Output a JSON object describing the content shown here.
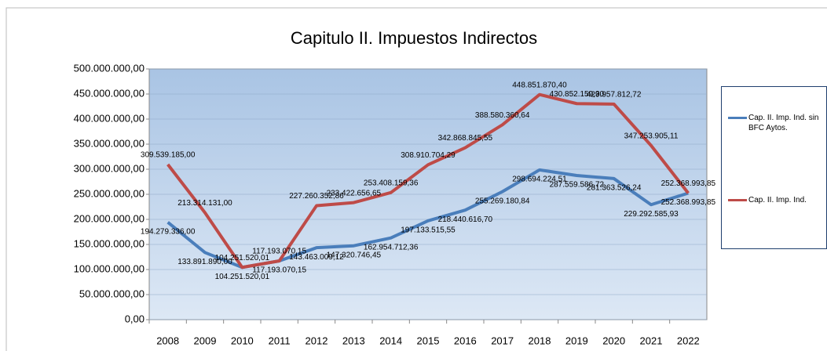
{
  "chart_data": {
    "type": "line",
    "title": "Capitulo II. Impuestos Indirectos",
    "categories": [
      "2008",
      "2009",
      "2010",
      "2011",
      "2012",
      "2013",
      "2014",
      "2015",
      "2016",
      "2017",
      "2018",
      "2019",
      "2020",
      "2021",
      "2022"
    ],
    "series": [
      {
        "name": "Cap. II. Imp. Ind. sin BFC Aytos.",
        "color": "#4a7ebb",
        "values": [
          194279336.0,
          133891890.0,
          104251520.01,
          117193070.15,
          143463009.12,
          147320746.45,
          162954712.36,
          197133515.55,
          218440616.7,
          255269180.84,
          298694224.51,
          287559586.72,
          281363526.24,
          229292585.93,
          252368993.85
        ],
        "value_labels": [
          "194.279.336,00",
          "133.891.890,00",
          "104.251.520,01",
          "117.193.070,15",
          "143.463.009,12",
          "147.320.746,45",
          "162.954.712,36",
          "197.133.515,55",
          "218.440.616,70",
          "255.269.180,84",
          "298.694.224,51",
          "287.559.586,72",
          "281.363.526,24",
          "229.292.585,93",
          "252.368.993,85"
        ]
      },
      {
        "name": "Cap. II. Imp. Ind.",
        "color": "#be4b48",
        "values": [
          309539185.0,
          213314131.0,
          104251520.01,
          117193070.15,
          227260352.86,
          233422656.65,
          253408159.36,
          308910704.29,
          342868845.55,
          388580360.64,
          448851870.4,
          430852159.3,
          429957812.72,
          347253905.11,
          252368993.85
        ],
        "value_labels": [
          "309.539.185,00",
          "213.314.131,00",
          "104.251.520,01",
          "117.193.070,15",
          "227.260.352,86",
          "233.422.656,65",
          "253.408.159,36",
          "308.910.704,29",
          "342.868.845,55",
          "388.580.360,64",
          "448.851.870,40",
          "430.852.159,30",
          "429.957.812,72",
          "347.253.905,11",
          "252.368.993,85"
        ]
      }
    ],
    "ylim": [
      0,
      500000000
    ],
    "yticks": [
      {
        "value": 0,
        "label": "0,00"
      },
      {
        "value": 50000000,
        "label": "50.000.000,00"
      },
      {
        "value": 100000000,
        "label": "100.000.000,00"
      },
      {
        "value": 150000000,
        "label": "150.000.000,00"
      },
      {
        "value": 200000000,
        "label": "200.000.000,00"
      },
      {
        "value": 250000000,
        "label": "250.000.000,00"
      },
      {
        "value": 300000000,
        "label": "300.000.000,00"
      },
      {
        "value": 350000000,
        "label": "350.000.000,00"
      },
      {
        "value": 400000000,
        "label": "400.000.000,00"
      },
      {
        "value": 450000000,
        "label": "450.000.000,00"
      },
      {
        "value": 500000000,
        "label": "500.000.000,00"
      }
    ],
    "grid": true,
    "legend": "right"
  }
}
